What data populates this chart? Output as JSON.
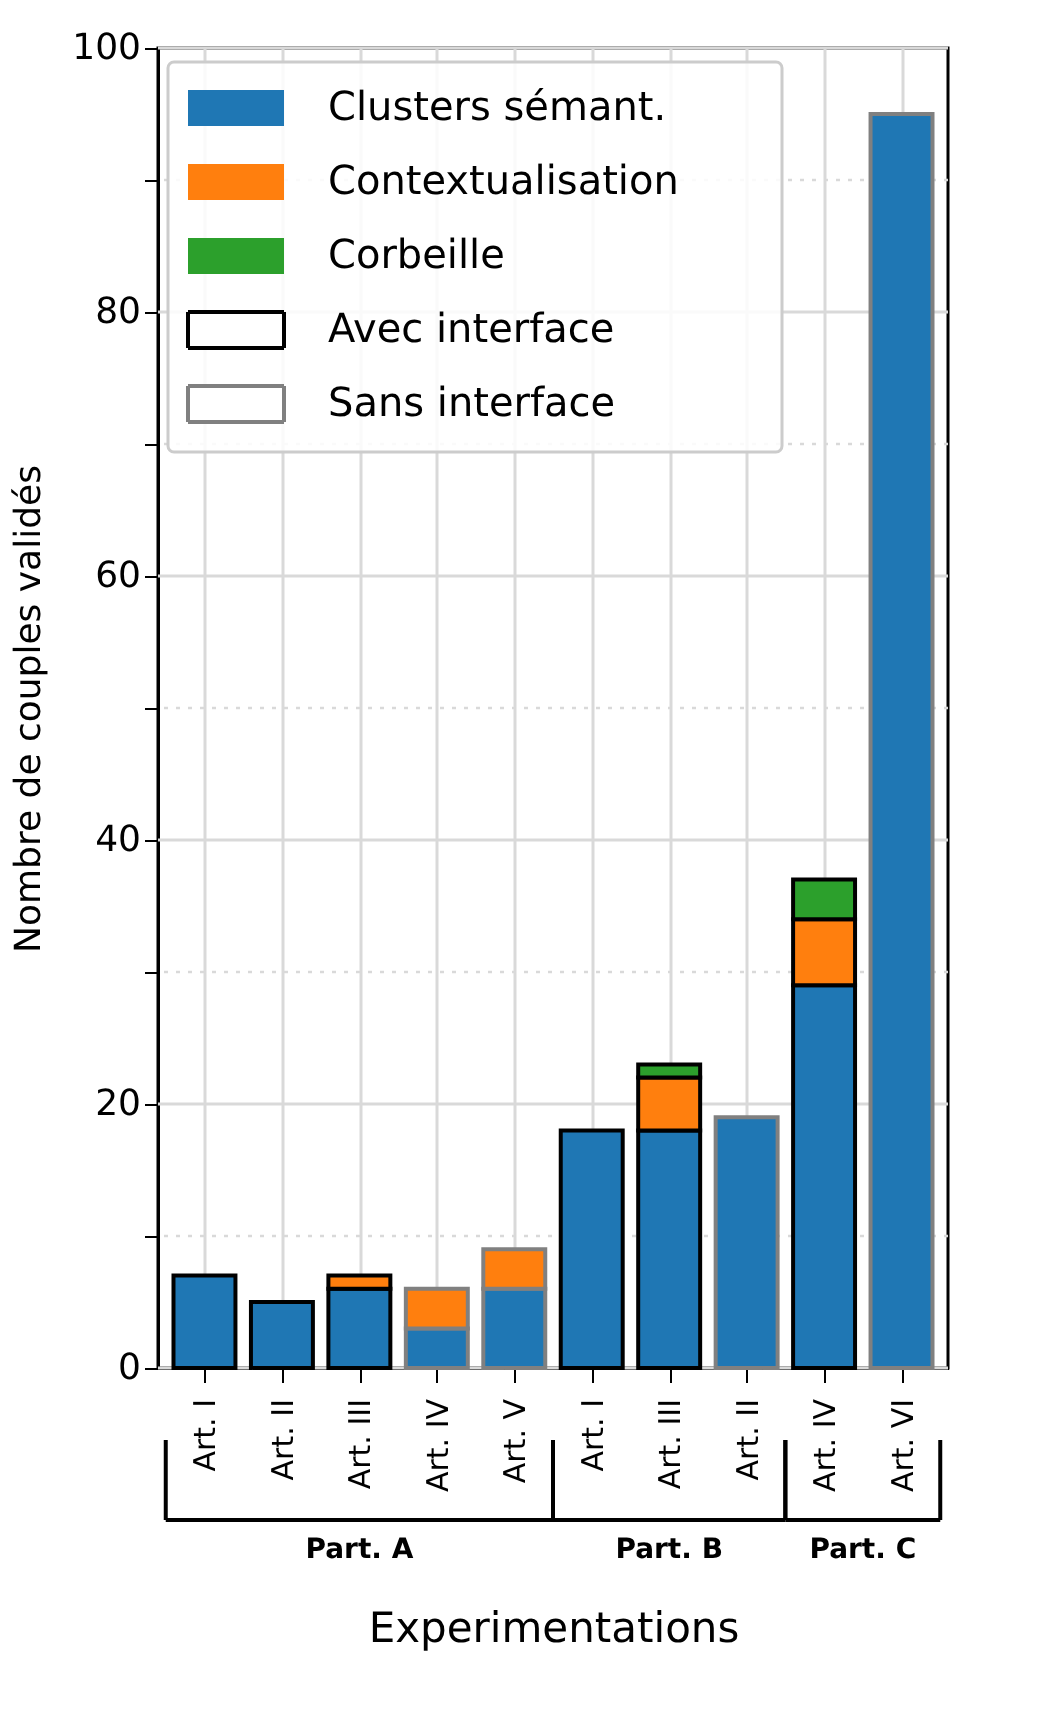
{
  "chart_data": {
    "type": "bar",
    "stacked": true,
    "xlabel": "Experimentations",
    "ylabel": "Nombre de couples validés",
    "categories": [
      "Art. I",
      "Art. II",
      "Art. III",
      "Art. IV",
      "Art. V",
      "Art. I",
      "Art. III",
      "Art. II",
      "Art. IV",
      "Art. VI"
    ],
    "series": [
      {
        "name": "Clusters sémant.",
        "color": "#1f77b4",
        "values": [
          7,
          5,
          6,
          null,
          null,
          18,
          18,
          null,
          29,
          null
        ]
      },
      {
        "name": "Contextualisation",
        "color": "#ff7f0e",
        "values": [
          null,
          null,
          1,
          null,
          null,
          null,
          4,
          null,
          5,
          null
        ]
      },
      {
        "name": "Corbeille",
        "color": "#2ca02c",
        "values": [
          null,
          null,
          null,
          null,
          null,
          null,
          1,
          null,
          3,
          null
        ]
      },
      {
        "color": "#1f77b4",
        "values": [
          null,
          null,
          null,
          3,
          6,
          null,
          null,
          19,
          null,
          95
        ]
      },
      {
        "color": "#ff7f0e",
        "values": [
          null,
          null,
          null,
          3,
          3,
          null,
          null,
          null,
          null,
          null
        ]
      },
      {
        "name": "Avec interface",
        "color": "#000000",
        "type": "other",
        "line_style": "solid",
        "values": [
          null,
          null,
          null,
          null,
          null,
          null,
          null,
          null,
          null,
          null
        ]
      },
      {
        "name": "Sans interface",
        "color": "#808080",
        "type": "other",
        "line_style": "solid",
        "values": [
          null,
          null,
          null,
          null,
          null,
          null,
          null,
          null,
          null,
          null
        ]
      }
    ],
    "annotations": [
      "Part. A",
      "Part. B",
      "Part. C"
    ],
    "ylim": [
      0,
      100
    ],
    "yticks": [
      0,
      {
        "value": 10,
        "label": null
      },
      20,
      {
        "value": 30,
        "label": null
      },
      40,
      {
        "value": 50,
        "label": null
      },
      60,
      {
        "value": 70,
        "label": null
      },
      80,
      {
        "value": 90,
        "label": null
      },
      100
    ],
    "grid": true,
    "legend": "top left"
  }
}
